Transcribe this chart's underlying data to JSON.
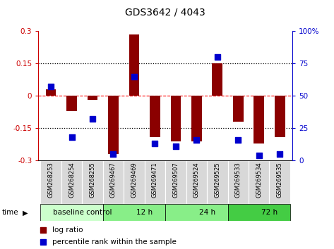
{
  "title": "GDS3642 / 4043",
  "samples": [
    "GSM268253",
    "GSM268254",
    "GSM268255",
    "GSM269467",
    "GSM269469",
    "GSM269471",
    "GSM269507",
    "GSM269524",
    "GSM269525",
    "GSM269533",
    "GSM269534",
    "GSM269535"
  ],
  "log_ratio": [
    0.03,
    -0.07,
    -0.02,
    -0.27,
    0.285,
    -0.19,
    -0.21,
    -0.21,
    0.15,
    -0.12,
    -0.22,
    -0.19
  ],
  "percentile_rank": [
    57,
    18,
    32,
    5,
    65,
    13,
    11,
    16,
    80,
    16,
    4,
    5
  ],
  "ylim": [
    -0.3,
    0.3
  ],
  "y2lim": [
    0,
    100
  ],
  "yticks": [
    -0.3,
    -0.15,
    0,
    0.15,
    0.3
  ],
  "y2ticks": [
    0,
    25,
    50,
    75,
    100
  ],
  "ytick_labels": [
    "-0.3",
    "-0.15",
    "0",
    "0.15",
    "0.3"
  ],
  "y2tick_labels": [
    "0",
    "25",
    "50",
    "75",
    "100%"
  ],
  "bar_color": "#8B0000",
  "dot_color": "#0000CD",
  "bar_width": 0.5,
  "groups": [
    {
      "label": "baseline control",
      "start": 0,
      "end": 3,
      "color": "#ccffcc"
    },
    {
      "label": "12 h",
      "start": 3,
      "end": 6,
      "color": "#88ee88"
    },
    {
      "label": "24 h",
      "start": 6,
      "end": 9,
      "color": "#88ee88"
    },
    {
      "label": "72 h",
      "start": 9,
      "end": 12,
      "color": "#44cc44"
    }
  ],
  "legend_items": [
    {
      "label": "log ratio",
      "color": "#8B0000"
    },
    {
      "label": "percentile rank within the sample",
      "color": "#0000CD"
    }
  ],
  "tick_color_left": "#CC0000",
  "tick_color_right": "#0000CD",
  "bg_color": "#ffffff"
}
